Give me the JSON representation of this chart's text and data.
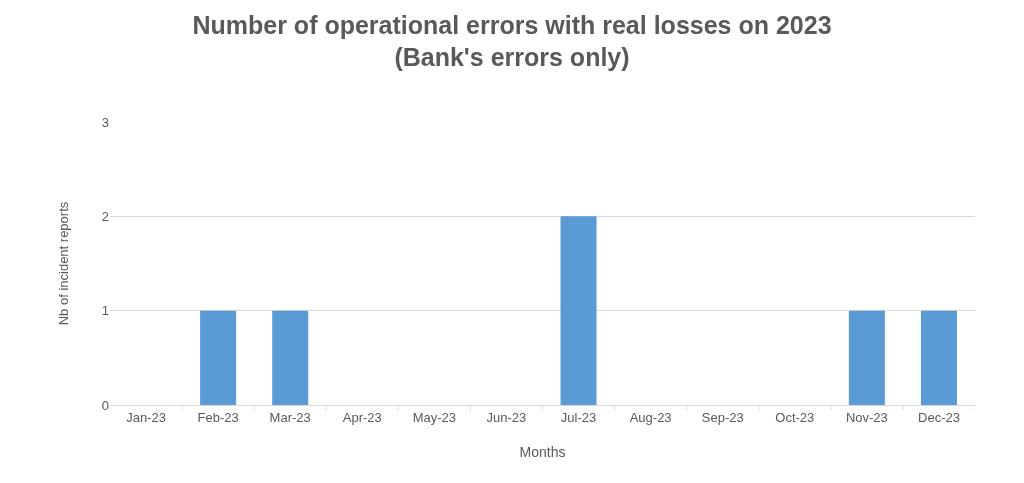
{
  "chart_data": {
    "type": "bar",
    "title": "Number of operational errors with real losses on 2023\n(Bank's errors only)",
    "xlabel": "Months",
    "ylabel": "Nb of incident reports",
    "categories": [
      "Jan-23",
      "Feb-23",
      "Mar-23",
      "Apr-23",
      "May-23",
      "Jun-23",
      "Jul-23",
      "Aug-23",
      "Sep-23",
      "Oct-23",
      "Nov-23",
      "Dec-23"
    ],
    "values": [
      0,
      1,
      1,
      0,
      0,
      0,
      2,
      0,
      0,
      0,
      1,
      1
    ],
    "color": "#5b9bd5",
    "ylim": [
      0,
      3
    ],
    "yticks": [
      0,
      1,
      2,
      3
    ],
    "grid": "y"
  }
}
